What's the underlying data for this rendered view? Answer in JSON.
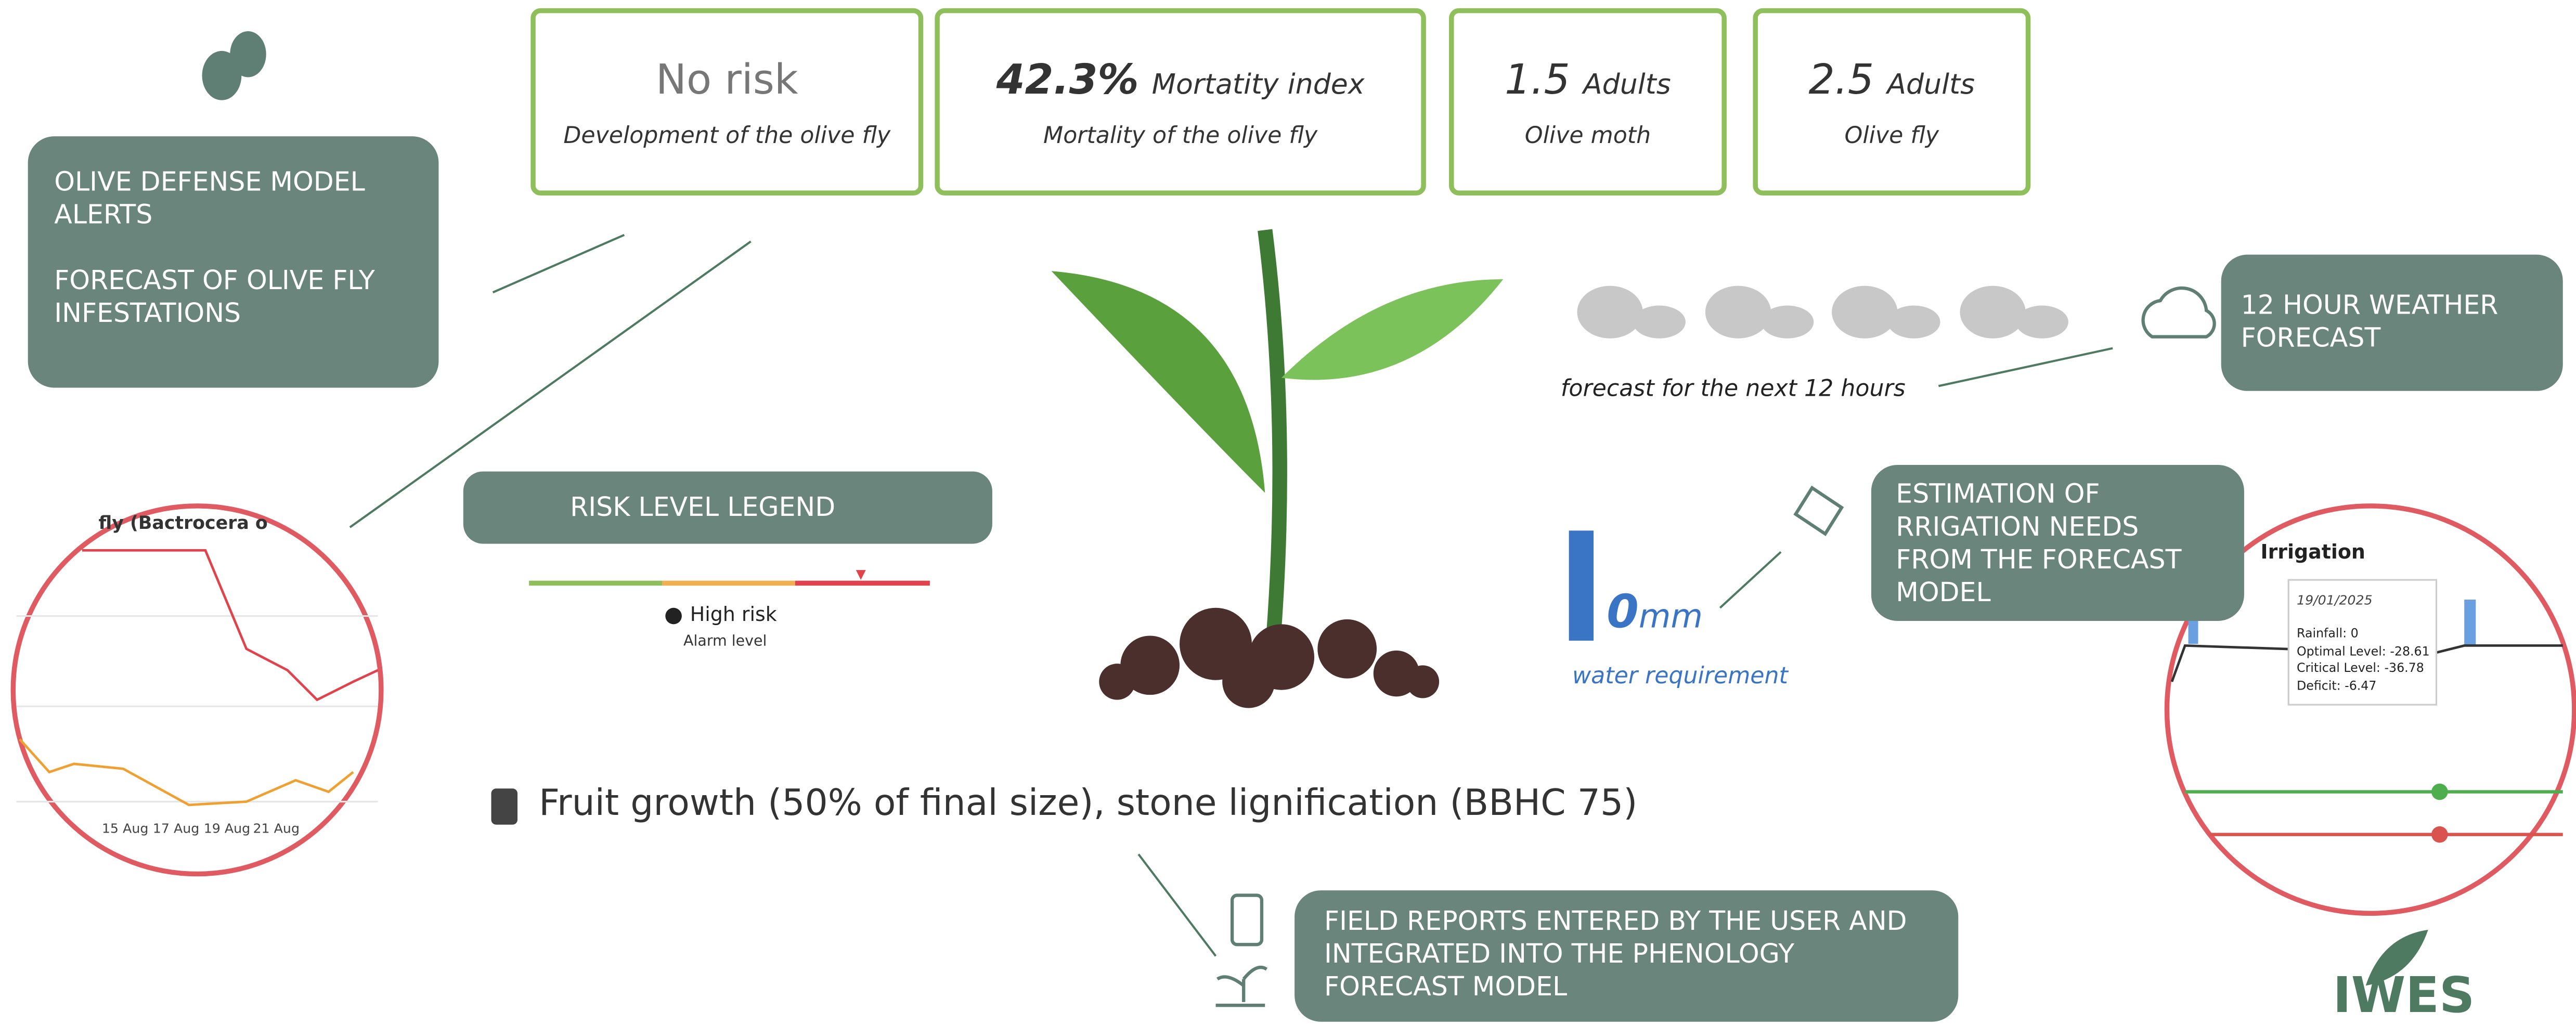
{
  "cards": [
    {
      "value": "No risk",
      "caption": "Development of the olive fly"
    },
    {
      "value": "42.3%",
      "unit": "Mortatity index",
      "caption": "Mortality of the olive fly"
    },
    {
      "value": "1.5",
      "unit": "Adults",
      "caption": "Olive moth"
    },
    {
      "value": "2.5",
      "unit": "Adults",
      "caption": "Olive fly"
    }
  ],
  "callouts": {
    "defense": [
      "OLIVE DEFENSE MODEL ALERTS",
      "FORECAST OF OLIVE FLY INFESTATIONS"
    ],
    "weather": "12 HOUR WEATHER FORECAST",
    "irrigation": "ESTIMATION OF RRIGATION NEEDS FROM THE FORECAST MODEL",
    "field": "FIELD REPORTS ENTERED BY THE USER AND INTEGRATED INTO THE PHENOLOGY FORECAST MODEL",
    "legend": "RISK LEVEL LEGEND"
  },
  "legend": {
    "level": "High risk",
    "note": "Alarm level"
  },
  "weather": {
    "caption": "forecast for the next 12 hours"
  },
  "water": {
    "value": "0",
    "unit": "mm",
    "caption": "water requirement"
  },
  "phenology": "Fruit growth (50% of final size), stone lignification (BBHC 75)",
  "fly_chart": {
    "title": "fly (Bactrocera o",
    "dates": [
      "15 Aug",
      "17 Aug",
      "19 Aug",
      "21 Aug"
    ]
  },
  "irrigation_chart": {
    "title": "Irrigation",
    "date": "19/01/2025",
    "lines": [
      "Rainfall: 0",
      "Optimal Level: -28.61",
      "Critical Level: -36.78",
      "Deficit: -6.47"
    ]
  },
  "logo": "IWES"
}
